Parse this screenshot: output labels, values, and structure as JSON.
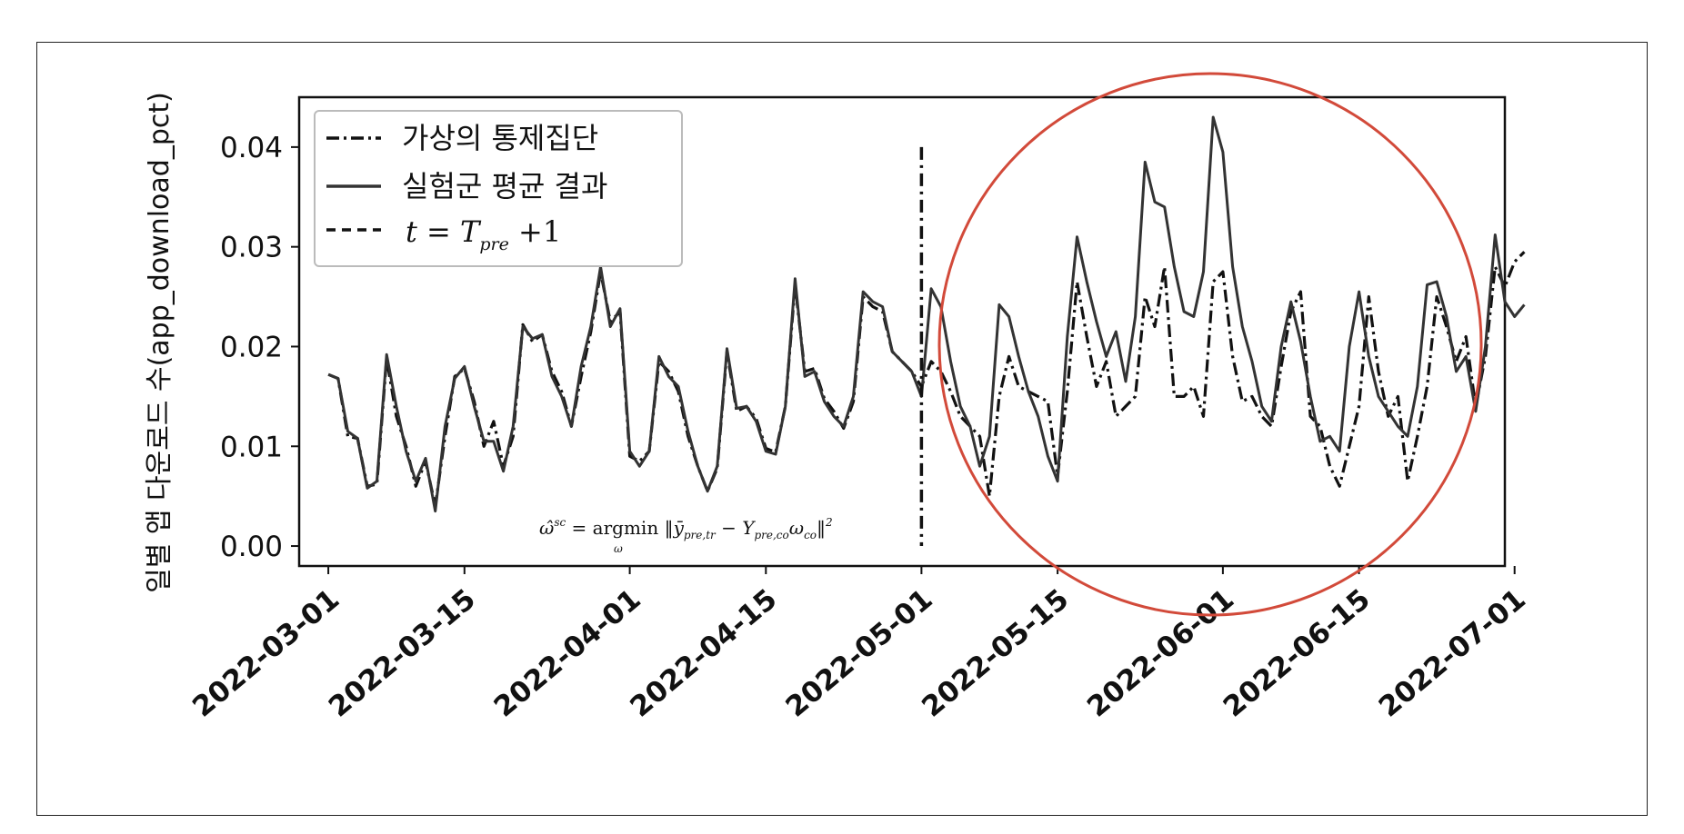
{
  "chart_data": {
    "type": "line",
    "xlabel": "",
    "ylabel": "일별 앱 다운로드 수(app_download_pct)",
    "xlim": [
      "2022-02-26",
      "2022-06-30"
    ],
    "ylim": [
      -0.002,
      0.045
    ],
    "x_ticks": [
      "2022-03-01",
      "2022-03-15",
      "2022-04-01",
      "2022-04-15",
      "2022-05-01",
      "2022-05-15",
      "2022-06-01",
      "2022-06-15",
      "2022-07-01"
    ],
    "y_ticks": [
      0.0,
      0.01,
      0.02,
      0.03,
      0.04
    ],
    "y_tick_labels": [
      "0.00",
      "0.01",
      "0.02",
      "0.03",
      "0.04"
    ],
    "grid": false,
    "legend_position": "top-left",
    "treatment_date": "2022-05-01",
    "vline_y_range": [
      0.0,
      0.04
    ],
    "legend": {
      "synthetic_label": "가상의 통제집단",
      "treated_label": "실험군 평균 결과"
    },
    "annotation": "ω̂^sc = argmin_ω ‖ȳ_pre,tr − Y_pre,co ω_co‖²",
    "highlight": {
      "shape": "circle",
      "color": "#d24a3a",
      "region": "post-treatment"
    },
    "start_date": "2022-03-01",
    "series": [
      {
        "name": "가상의 통제집단",
        "style": "dashdot",
        "color": "#111111",
        "values": [
          0.0172,
          0.0168,
          0.011,
          0.0108,
          0.006,
          0.0062,
          0.0188,
          0.013,
          0.01,
          0.006,
          0.0085,
          0.004,
          0.011,
          0.017,
          0.0178,
          0.0145,
          0.01,
          0.0125,
          0.008,
          0.011,
          0.0222,
          0.0205,
          0.0212,
          0.0175,
          0.0155,
          0.012,
          0.017,
          0.0215,
          0.0275,
          0.0225,
          0.0235,
          0.009,
          0.0085,
          0.0095,
          0.0185,
          0.0175,
          0.0155,
          0.011,
          0.008,
          0.0055,
          0.0078,
          0.0195,
          0.0135,
          0.014,
          0.0128,
          0.0098,
          0.0094,
          0.014,
          0.0262,
          0.0175,
          0.0178,
          0.0148,
          0.0135,
          0.0118,
          0.0145,
          0.025,
          0.024,
          0.0235,
          0.0195,
          0.0185,
          0.0175,
          0.016,
          0.0185,
          0.0175,
          0.0155,
          0.013,
          0.012,
          0.011,
          0.005,
          0.015,
          0.019,
          0.016,
          0.0155,
          0.015,
          0.0145,
          0.007,
          0.0155,
          0.0265,
          0.021,
          0.016,
          0.0185,
          0.013,
          0.014,
          0.015,
          0.025,
          0.022,
          0.028,
          0.015,
          0.015,
          0.016,
          0.013,
          0.0265,
          0.0275,
          0.019,
          0.0145,
          0.015,
          0.013,
          0.012,
          0.018,
          0.0235,
          0.0255,
          0.013,
          0.012,
          0.008,
          0.006,
          0.01,
          0.014,
          0.025,
          0.0175,
          0.013,
          0.015,
          0.0065,
          0.011,
          0.016,
          0.025,
          0.022,
          0.0185,
          0.021,
          0.014,
          0.019,
          0.028,
          0.026,
          0.0285,
          0.0295
        ]
      },
      {
        "name": "실험군 평균 결과",
        "style": "solid",
        "color": "#333333",
        "values": [
          0.0172,
          0.0168,
          0.0115,
          0.0108,
          0.0058,
          0.0065,
          0.0192,
          0.014,
          0.0095,
          0.0065,
          0.0088,
          0.0035,
          0.012,
          0.0168,
          0.018,
          0.014,
          0.0105,
          0.0105,
          0.0075,
          0.012,
          0.022,
          0.0208,
          0.0212,
          0.017,
          0.015,
          0.012,
          0.018,
          0.022,
          0.028,
          0.022,
          0.0238,
          0.0095,
          0.008,
          0.0095,
          0.019,
          0.017,
          0.016,
          0.0115,
          0.008,
          0.0055,
          0.008,
          0.0198,
          0.0138,
          0.014,
          0.0125,
          0.0095,
          0.0092,
          0.014,
          0.0268,
          0.017,
          0.0175,
          0.0145,
          0.013,
          0.012,
          0.015,
          0.0255,
          0.0245,
          0.024,
          0.0195,
          0.0185,
          0.0175,
          0.015,
          0.0258,
          0.024,
          0.0185,
          0.014,
          0.012,
          0.008,
          0.011,
          0.0242,
          0.023,
          0.019,
          0.0155,
          0.013,
          0.009,
          0.0065,
          0.021,
          0.031,
          0.0265,
          0.0225,
          0.019,
          0.0215,
          0.0165,
          0.023,
          0.0385,
          0.0345,
          0.034,
          0.028,
          0.0235,
          0.023,
          0.0275,
          0.043,
          0.0395,
          0.028,
          0.022,
          0.0185,
          0.014,
          0.0125,
          0.02,
          0.0245,
          0.0205,
          0.015,
          0.0105,
          0.011,
          0.0095,
          0.02,
          0.0255,
          0.019,
          0.015,
          0.0135,
          0.012,
          0.011,
          0.016,
          0.0262,
          0.0265,
          0.023,
          0.0175,
          0.019,
          0.0135,
          0.02,
          0.0312,
          0.0245,
          0.023,
          0.0242
        ]
      }
    ]
  }
}
